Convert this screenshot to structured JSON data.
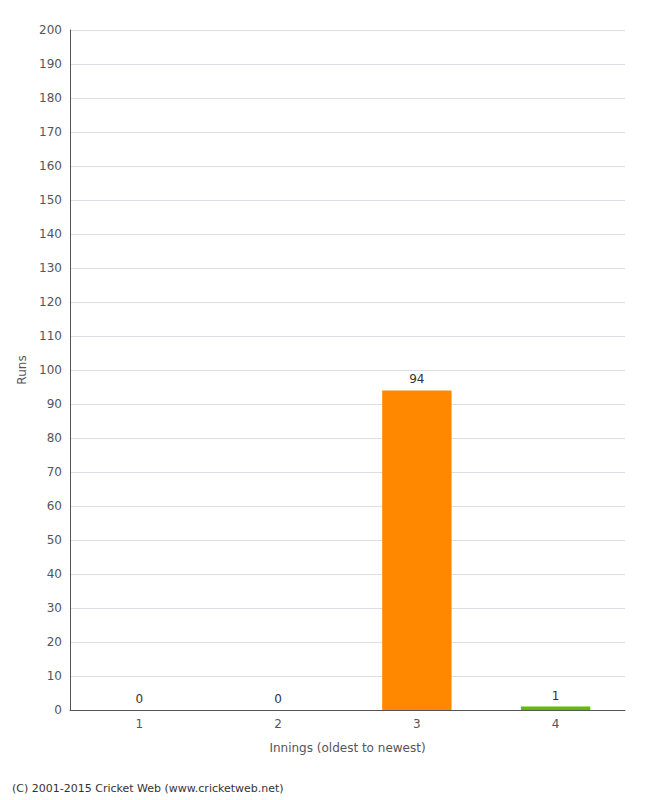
{
  "chart_data": {
    "type": "bar",
    "categories": [
      "1",
      "2",
      "3",
      "4"
    ],
    "values": [
      0,
      0,
      94,
      1
    ],
    "colors": [
      "#ff8800",
      "#ff8800",
      "#ff8800",
      "#66bb00"
    ],
    "xlabel": "Innings (oldest to newest)",
    "ylabel": "Runs",
    "ylim": [
      0,
      200
    ],
    "yticks": [
      0,
      10,
      20,
      30,
      40,
      50,
      60,
      70,
      80,
      90,
      100,
      110,
      120,
      130,
      140,
      150,
      160,
      170,
      180,
      190,
      200
    ],
    "grid": true,
    "data_labels": true,
    "annotations": [
      "(C) 2001-2015 Cricket Web (www.cricketweb.net)"
    ]
  }
}
